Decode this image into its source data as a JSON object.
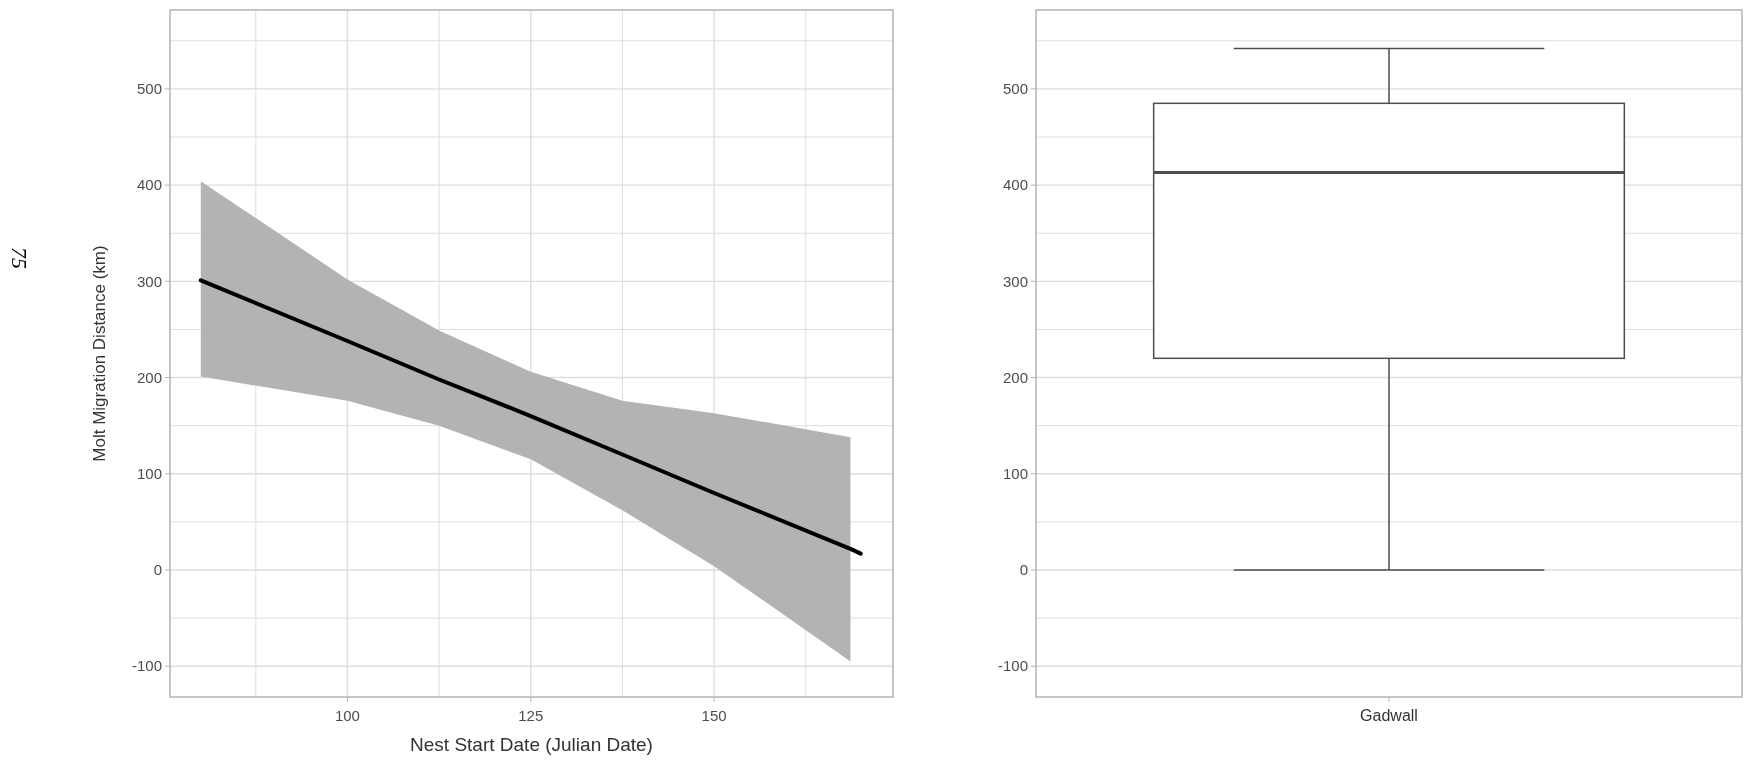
{
  "chart_data": [
    {
      "type": "line",
      "xlabel": "Nest Start Date (Julian Date)",
      "ylabel": "Molt Migration Distance (km)",
      "annotations": [
        "75"
      ],
      "xlim": [
        75.8,
        174.4
      ],
      "xticks": [
        {
          "value": 87.5,
          "label": null
        },
        100,
        {
          "value": 112.5,
          "label": null
        },
        125,
        {
          "value": 137.5,
          "label": null
        },
        150,
        {
          "value": 162.5,
          "label": null
        }
      ],
      "ylim": [
        -132,
        582
      ],
      "yticks": [
        -100,
        {
          "value": -50,
          "label": null
        },
        0,
        {
          "value": 50,
          "label": null
        },
        100,
        {
          "value": 150,
          "label": null
        },
        200,
        {
          "value": 250,
          "label": null
        },
        300,
        {
          "value": 350,
          "label": null
        },
        400,
        {
          "value": 450,
          "label": null
        },
        500,
        {
          "value": 550,
          "label": null
        }
      ],
      "grid": true,
      "line_style": "solid",
      "marker": "none",
      "series": [
        {
          "color": "#000000",
          "x": [
            80,
            100,
            112.5,
            125,
            137.5,
            150,
            168.6,
            170
          ],
          "values": [
            301,
            238,
            198,
            160,
            120,
            80,
            22,
            17
          ],
          "lower": [
            201,
            176,
            150,
            115,
            62,
            4,
            -95,
            null
          ],
          "upper": [
            404,
            302,
            249,
            206,
            176,
            163,
            138,
            null
          ]
        }
      ]
    },
    {
      "type": "box",
      "categories": [
        "Gadwall"
      ],
      "ylim": [
        -132,
        582
      ],
      "yticks": [
        -100,
        {
          "value": -50,
          "label": null
        },
        0,
        {
          "value": 50,
          "label": null
        },
        100,
        {
          "value": 150,
          "label": null
        },
        200,
        {
          "value": 250,
          "label": null
        },
        300,
        {
          "value": 350,
          "label": null
        },
        400,
        {
          "value": 450,
          "label": null
        },
        500,
        {
          "value": 550,
          "label": null
        }
      ],
      "grid": "y",
      "boxes": [
        {
          "low": 0,
          "q1": 220,
          "median": 413,
          "q3": 485,
          "high": 542
        }
      ]
    }
  ]
}
